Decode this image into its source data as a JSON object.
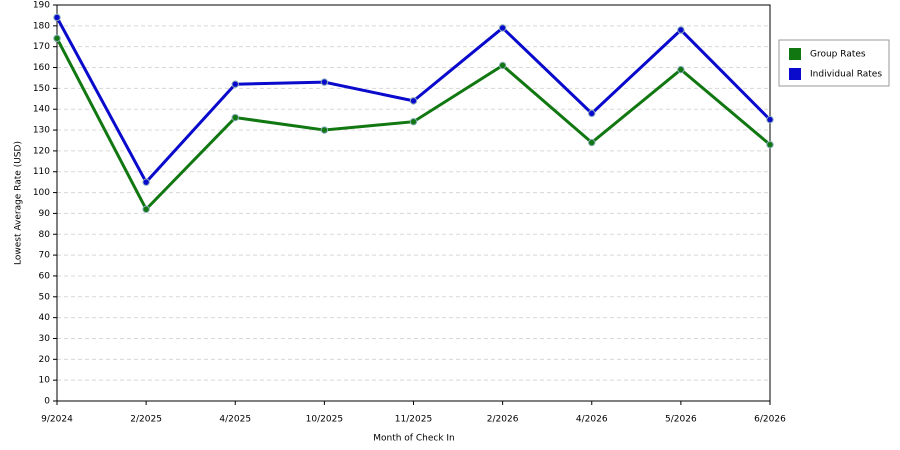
{
  "chart_data": {
    "type": "line",
    "x_label": "Month of Check In",
    "y_label": "Lowest Average Rate (USD)",
    "categories": [
      "9/2024",
      "2/2025",
      "4/2025",
      "10/2025",
      "11/2025",
      "2/2026",
      "4/2026",
      "5/2026",
      "6/2026"
    ],
    "series": [
      {
        "name": "Group Rates",
        "color": "#117711",
        "values": [
          174,
          92,
          136,
          130,
          134,
          161,
          124,
          159,
          123
        ]
      },
      {
        "name": "Individual Rates",
        "color": "#0a0acc",
        "values": [
          184,
          105,
          152,
          153,
          144,
          179,
          138,
          178,
          135
        ]
      }
    ],
    "ylim": [
      0,
      190
    ],
    "yticks": [
      0,
      10,
      20,
      30,
      40,
      50,
      60,
      70,
      80,
      90,
      100,
      110,
      120,
      130,
      140,
      150,
      160,
      170,
      180,
      190
    ],
    "grid": true
  }
}
